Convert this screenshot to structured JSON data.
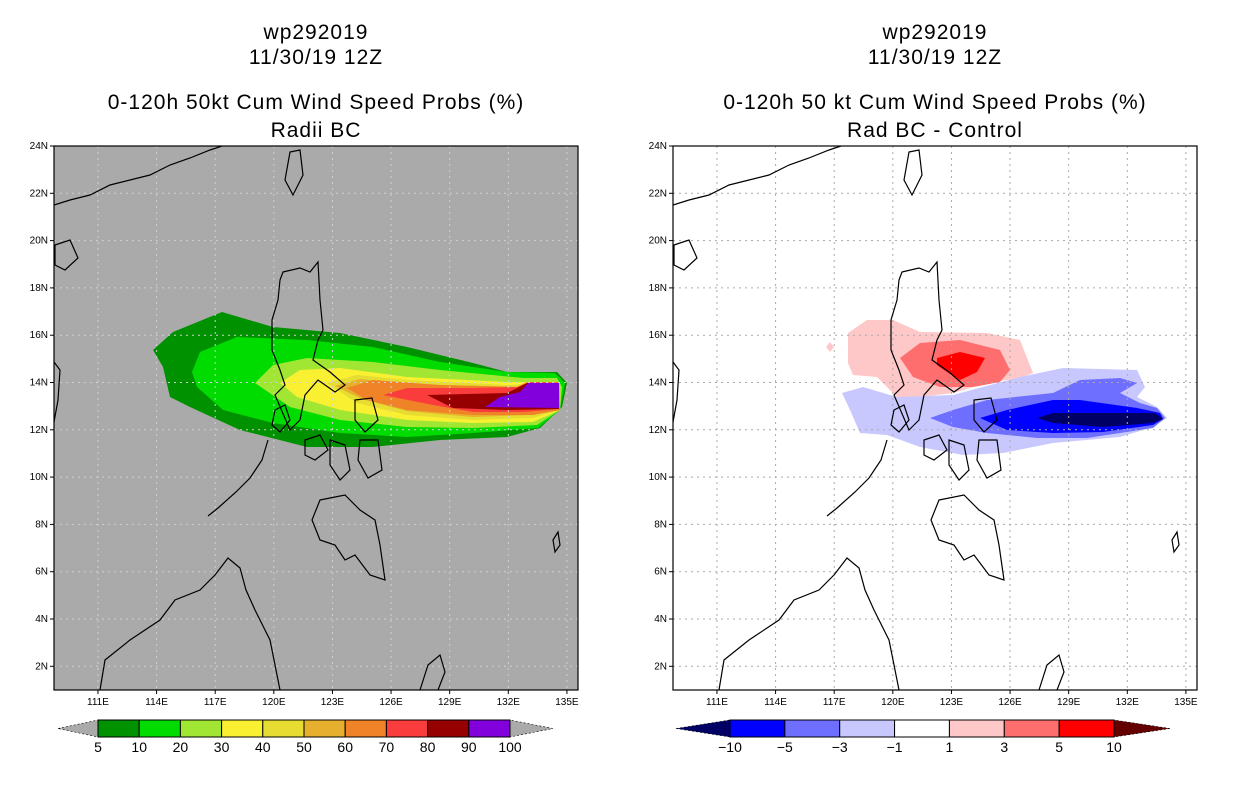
{
  "panels": [
    {
      "storm": "wp292019",
      "datetime": "11/30/19 12Z",
      "title": "0-120h 50kt Cum Wind Speed Probs (%)",
      "subtitle": "Radii BC",
      "background": "#aaaaaa",
      "colorbar": {
        "labels": [
          "5",
          "10",
          "20",
          "30",
          "40",
          "50",
          "60",
          "70",
          "80",
          "90",
          "100"
        ],
        "colors": [
          "#009100",
          "#00dc00",
          "#a0e632",
          "#faf032",
          "#e6dc32",
          "#e6af2d",
          "#f08228",
          "#fa3c3c",
          "#960000",
          "#8200dc"
        ],
        "under_color": "#aaaaaa",
        "over_color": "#aaaaaa"
      }
    },
    {
      "storm": "wp292019",
      "datetime": "11/30/19 12Z",
      "title": "0-120h 50 kt Cum Wind Speed Probs (%)",
      "subtitle": "Rad BC - Control",
      "background": "#ffffff",
      "colorbar": {
        "labels": [
          "−10",
          "−5",
          "−3",
          "−1",
          "1",
          "3",
          "5",
          "10"
        ],
        "colors": [
          "#0000ff",
          "#6e6eff",
          "#c8c8ff",
          "#ffffff",
          "#ffc8c8",
          "#ff6e6e",
          "#ff0000"
        ],
        "under_color": "#000064",
        "over_color": "#640000"
      }
    }
  ],
  "axes": {
    "lat_labels": [
      "2N",
      "4N",
      "6N",
      "8N",
      "10N",
      "12N",
      "14N",
      "16N",
      "18N",
      "20N",
      "22N",
      "24N"
    ],
    "lat_values": [
      2,
      4,
      6,
      8,
      10,
      12,
      14,
      16,
      18,
      20,
      22,
      24
    ],
    "lon_labels": [
      "111E",
      "114E",
      "117E",
      "120E",
      "123E",
      "126E",
      "129E",
      "132E",
      "135E"
    ],
    "lon_values": [
      111,
      114,
      117,
      120,
      123,
      126,
      129,
      132,
      135
    ]
  }
}
